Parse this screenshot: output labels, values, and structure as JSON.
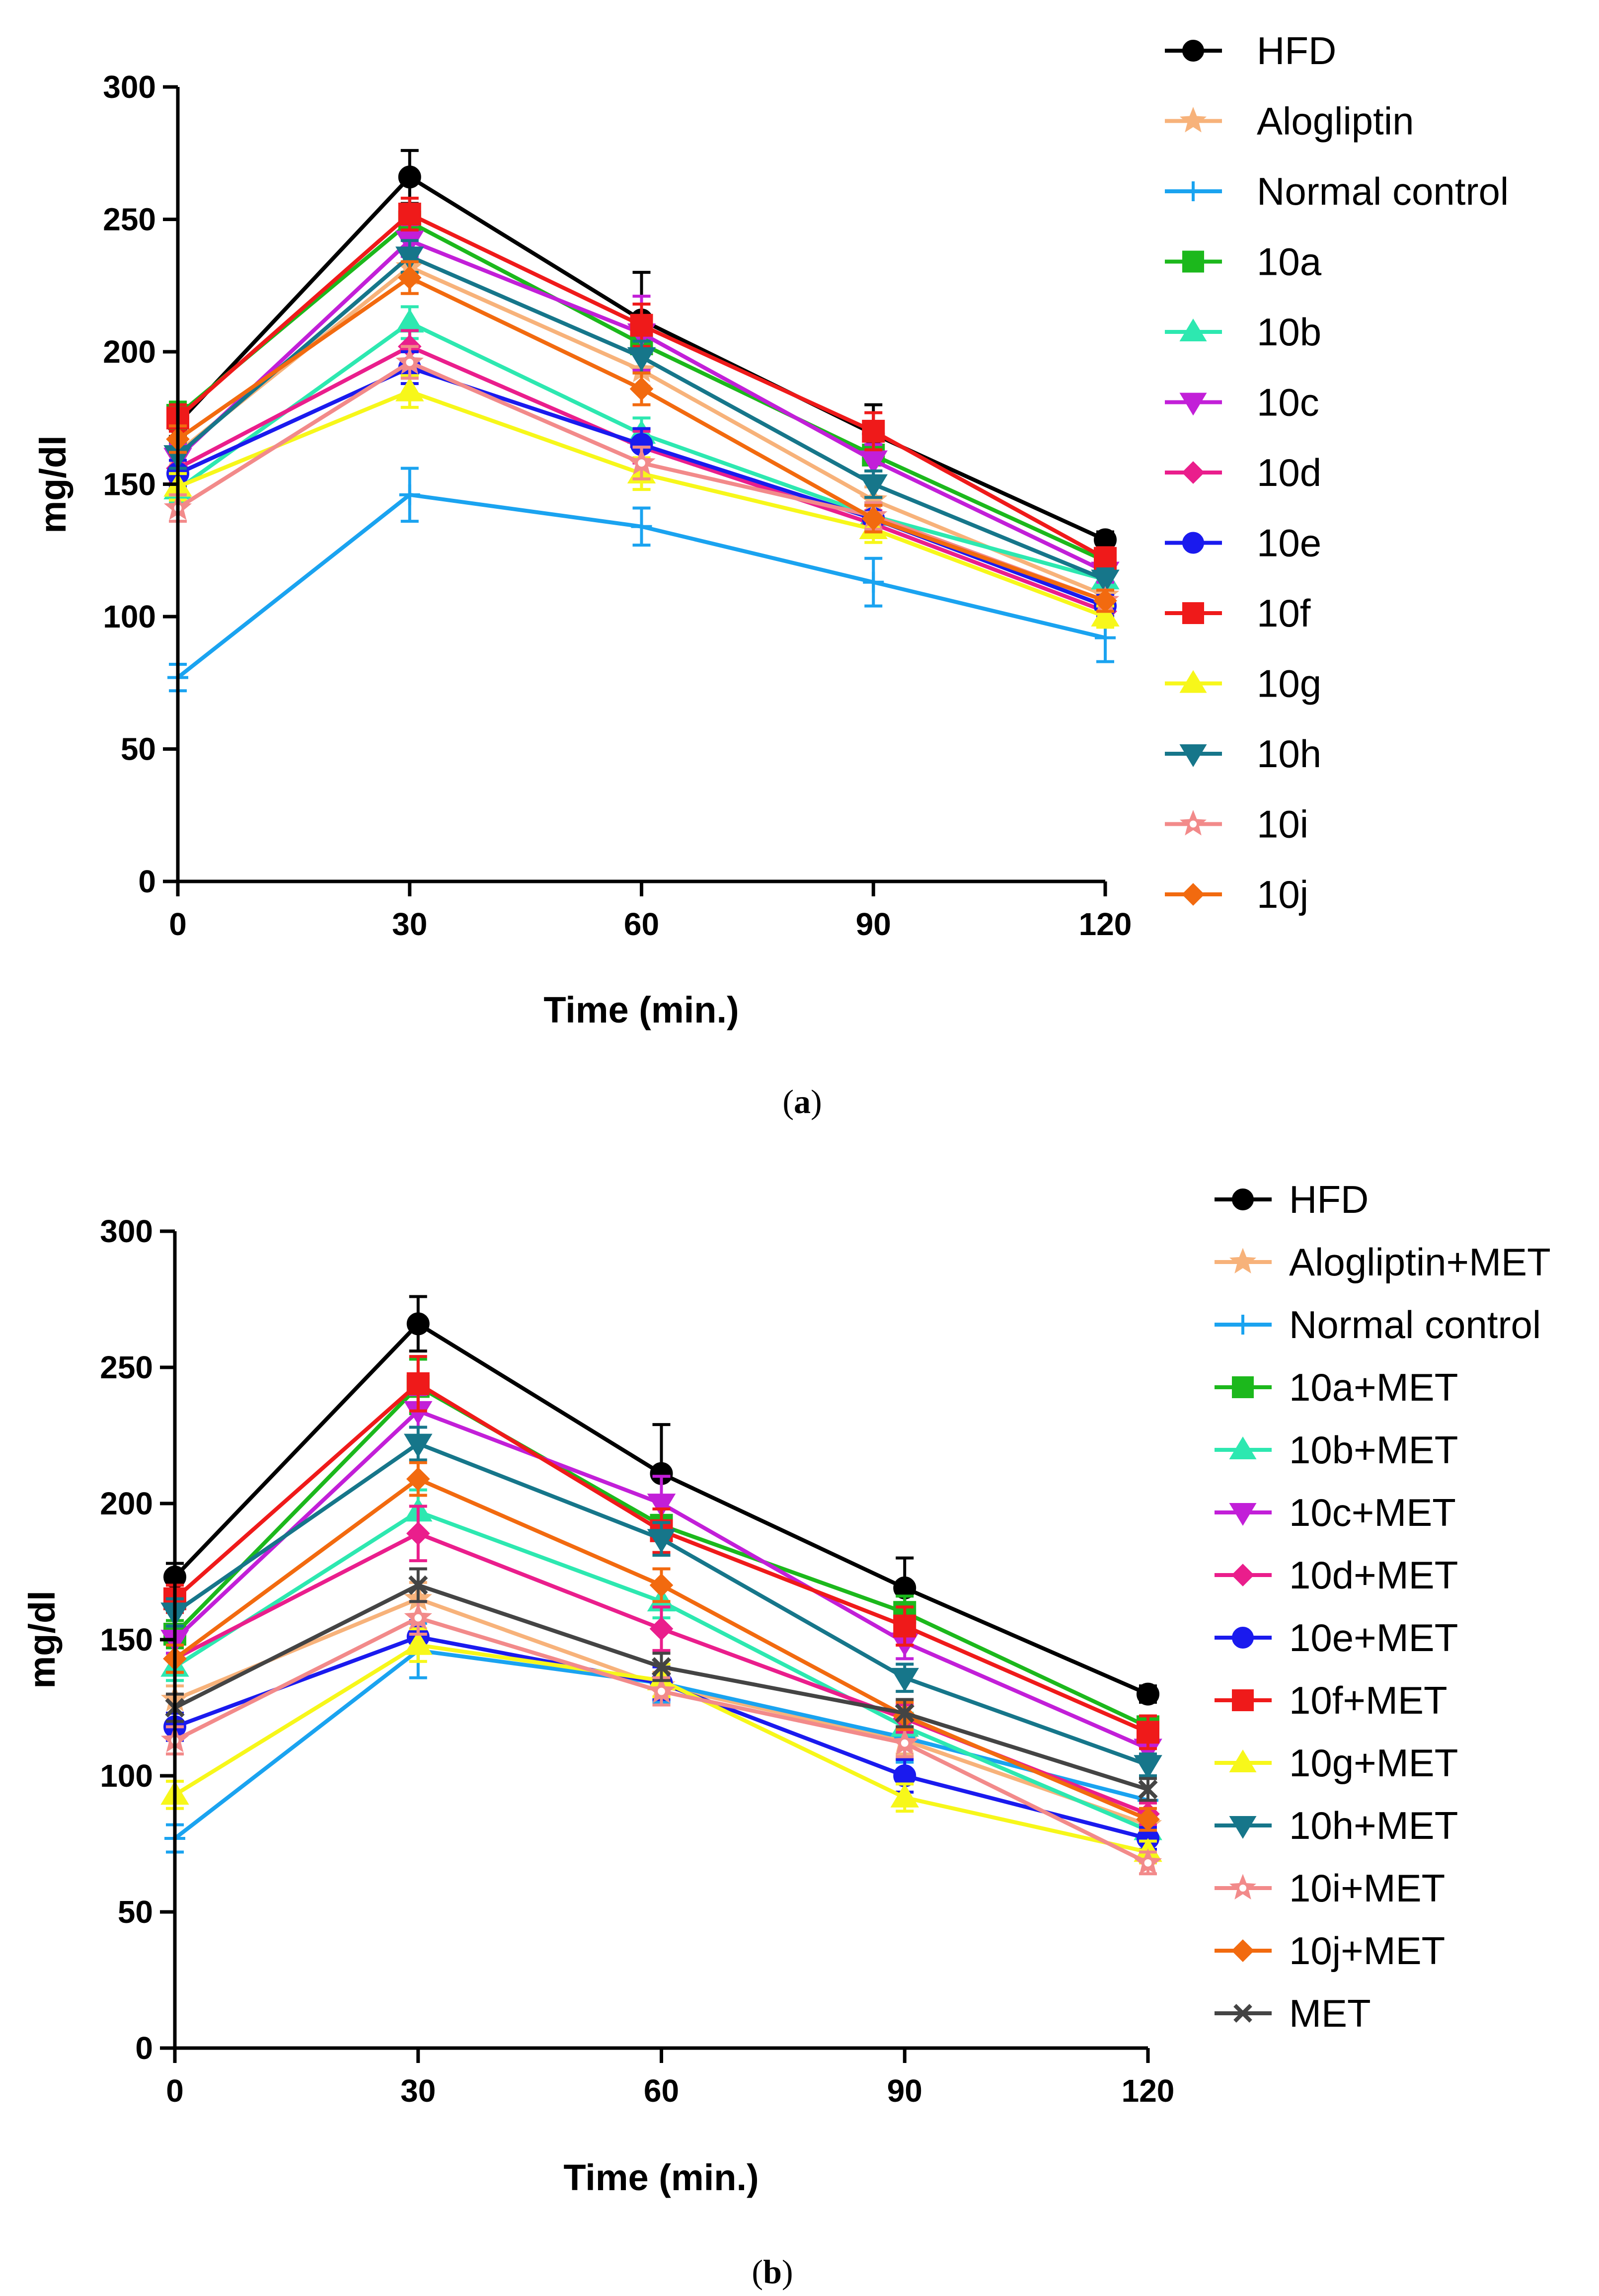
{
  "chart_data": [
    {
      "type": "line",
      "caption": "a",
      "xlabel": "Time (min.)",
      "ylabel": "mg/dl",
      "x": [
        0,
        30,
        60,
        90,
        120
      ],
      "xlim": [
        0,
        120
      ],
      "ylim": [
        0,
        300
      ],
      "xticks": [
        "0",
        "30",
        "60",
        "90",
        "120"
      ],
      "yticks": [
        "0",
        "50",
        "100",
        "150",
        "200",
        "250",
        "300"
      ],
      "series": [
        {
          "name": "HFD",
          "color": "#000000",
          "marker": "circle",
          "values": [
            173,
            266,
            212,
            169,
            129
          ],
          "errors": [
            5,
            10,
            18,
            11,
            3
          ]
        },
        {
          "name": "Alogliptin",
          "color": "#f7b27a",
          "marker": "star",
          "values": [
            162,
            232,
            193,
            144,
            108
          ],
          "errors": [
            5,
            6,
            6,
            5,
            4
          ]
        },
        {
          "name": "Normal control",
          "color": "#1aa3f0",
          "marker": "plus",
          "values": [
            77,
            146,
            134,
            113,
            92
          ],
          "errors": [
            5,
            10,
            7,
            9,
            9
          ]
        },
        {
          "name": "10a",
          "color": "#1cb81c",
          "marker": "square",
          "values": [
            176,
            249,
            203,
            161,
            121
          ],
          "errors": [
            5,
            6,
            10,
            6,
            4
          ]
        },
        {
          "name": "10b",
          "color": "#2de8b0",
          "marker": "triangle-up",
          "values": [
            148,
            211,
            169,
            138,
            114
          ],
          "errors": [
            5,
            6,
            6,
            5,
            4
          ]
        },
        {
          "name": "10c",
          "color": "#c21fd8",
          "marker": "triangle-down",
          "values": [
            160,
            242,
            207,
            159,
            117
          ],
          "errors": [
            5,
            6,
            14,
            6,
            4
          ]
        },
        {
          "name": "10d",
          "color": "#ea1e8c",
          "marker": "diamond",
          "values": [
            156,
            202,
            164,
            135,
            102
          ],
          "errors": [
            5,
            6,
            6,
            5,
            4
          ]
        },
        {
          "name": "10e",
          "color": "#1a1aee",
          "marker": "circle",
          "values": [
            154,
            194,
            165,
            137,
            104
          ],
          "errors": [
            5,
            6,
            6,
            5,
            4
          ]
        },
        {
          "name": "10f",
          "color": "#ef1a1a",
          "marker": "square",
          "values": [
            175,
            252,
            210,
            170,
            122
          ],
          "errors": [
            5,
            6,
            8,
            7,
            4
          ]
        },
        {
          "name": "10g",
          "color": "#f7f71a",
          "marker": "triangle-up",
          "values": [
            149,
            185,
            154,
            133,
            100
          ],
          "errors": [
            5,
            6,
            6,
            5,
            4
          ]
        },
        {
          "name": "10h",
          "color": "#16768a",
          "marker": "triangle-down",
          "values": [
            161,
            236,
            198,
            150,
            114
          ],
          "errors": [
            5,
            6,
            6,
            5,
            4
          ]
        },
        {
          "name": "10i",
          "color": "#f28a8a",
          "marker": "asterisk",
          "values": [
            141,
            196,
            158,
            138,
            106
          ],
          "errors": [
            5,
            6,
            6,
            5,
            4
          ]
        },
        {
          "name": "10j",
          "color": "#f26a0f",
          "marker": "diamond",
          "values": [
            167,
            228,
            186,
            137,
            106
          ],
          "errors": [
            5,
            6,
            6,
            5,
            4
          ]
        }
      ]
    },
    {
      "type": "line",
      "caption": "b",
      "xlabel": "Time (min.)",
      "ylabel": "mg/dl",
      "x": [
        0,
        30,
        60,
        90,
        120
      ],
      "xlim": [
        0,
        120
      ],
      "ylim": [
        0,
        300
      ],
      "xticks": [
        "0",
        "30",
        "60",
        "90",
        "120"
      ],
      "yticks": [
        "0",
        "50",
        "100",
        "150",
        "200",
        "250",
        "300"
      ],
      "series": [
        {
          "name": "HFD",
          "color": "#000000",
          "marker": "circle",
          "values": [
            173,
            266,
            211,
            169,
            130
          ],
          "errors": [
            5,
            10,
            18,
            11,
            3
          ]
        },
        {
          "name": "Alogliptin+MET",
          "color": "#f7b27a",
          "marker": "star",
          "values": [
            128,
            165,
            133,
            113,
            82
          ],
          "errors": [
            5,
            6,
            5,
            5,
            4
          ]
        },
        {
          "name": "Normal control",
          "color": "#1aa3f0",
          "marker": "plus",
          "values": [
            77,
            146,
            134,
            114,
            91
          ],
          "errors": [
            5,
            10,
            7,
            9,
            9
          ]
        },
        {
          "name": "10a+MET",
          "color": "#1cb81c",
          "marker": "square",
          "values": [
            152,
            243,
            192,
            160,
            118
          ],
          "errors": [
            5,
            10,
            10,
            6,
            4
          ]
        },
        {
          "name": "10b+MET",
          "color": "#2de8b0",
          "marker": "triangle-up",
          "values": [
            140,
            197,
            164,
            118,
            80
          ],
          "errors": [
            5,
            8,
            6,
            5,
            4
          ]
        },
        {
          "name": "10c+MET",
          "color": "#c21fd8",
          "marker": "triangle-down",
          "values": [
            150,
            234,
            200,
            149,
            110
          ],
          "errors": [
            5,
            6,
            10,
            6,
            4
          ]
        },
        {
          "name": "10d+MET",
          "color": "#ea1e8c",
          "marker": "diamond",
          "values": [
            143,
            189,
            154,
            121,
            86
          ],
          "errors": [
            5,
            10,
            8,
            5,
            4
          ]
        },
        {
          "name": "10e+MET",
          "color": "#1a1aee",
          "marker": "circle",
          "values": [
            118,
            151,
            134,
            100,
            77
          ],
          "errors": [
            5,
            6,
            6,
            6,
            4
          ]
        },
        {
          "name": "10f+MET",
          "color": "#ef1a1a",
          "marker": "square",
          "values": [
            165,
            244,
            190,
            155,
            116
          ],
          "errors": [
            5,
            10,
            8,
            7,
            6
          ]
        },
        {
          "name": "10g+MET",
          "color": "#f7f71a",
          "marker": "triangle-up",
          "values": [
            93,
            148,
            135,
            92,
            72
          ],
          "errors": [
            5,
            6,
            6,
            5,
            4
          ]
        },
        {
          "name": "10h+MET",
          "color": "#16768a",
          "marker": "triangle-down",
          "values": [
            160,
            222,
            187,
            136,
            104
          ],
          "errors": [
            5,
            6,
            6,
            5,
            4
          ]
        },
        {
          "name": "10i+MET",
          "color": "#f28a8a",
          "marker": "asterisk",
          "values": [
            113,
            158,
            131,
            112,
            68
          ],
          "errors": [
            5,
            6,
            5,
            5,
            4
          ]
        },
        {
          "name": "10j+MET",
          "color": "#f26a0f",
          "marker": "diamond",
          "values": [
            143,
            209,
            170,
            122,
            84
          ],
          "errors": [
            5,
            6,
            6,
            5,
            4
          ]
        },
        {
          "name": "MET",
          "color": "#444444",
          "marker": "cross",
          "values": [
            125,
            170,
            140,
            123,
            95
          ],
          "errors": [
            5,
            6,
            5,
            5,
            4
          ]
        }
      ]
    }
  ]
}
